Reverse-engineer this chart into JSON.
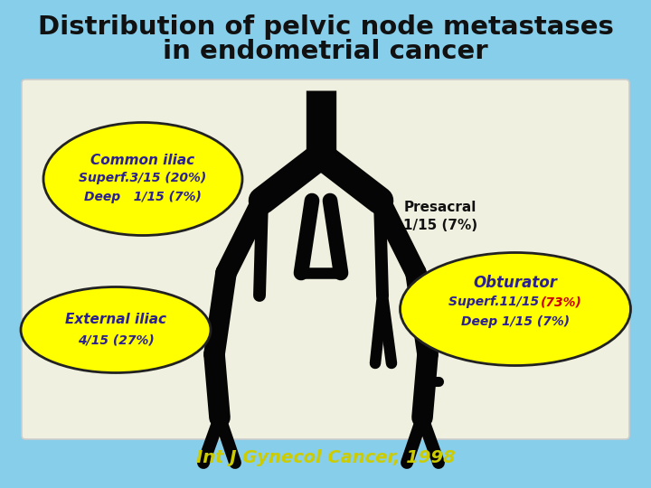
{
  "title_line1": "Distribution of pelvic node metastases",
  "title_line2": "in endometrial cancer",
  "title_color": "#111111",
  "title_fontsize": 21,
  "bg_color": "#87CEEB",
  "panel_color": "#f0f0e0",
  "panel_edge_color": "#cccccc",
  "ellipse_color": "#FFFF00",
  "ellipse_edge_color": "#222222",
  "common_iliac_label": "Common iliac",
  "common_iliac_superf": "Superf.3/15 (20%)",
  "common_iliac_deep": "Deep   1/15 (7%)",
  "presacral_label": "Presacral",
  "presacral_value": "1/15 (7%)",
  "external_iliac_label": "External iliac",
  "external_iliac_value": "4/15 (27%)",
  "obturator_label": "Obturator",
  "obturator_superf": "Superf.11/15 ",
  "obturator_superf_pct": "(73%)",
  "obturator_deep": "Deep 1/15 (7%)",
  "citation": "Int J Gynecol Cancer, 1998",
  "text_color_dark": "#2b2090",
  "text_color_red": "#cc0000",
  "text_color_black": "#111111",
  "citation_color": "#cccc00"
}
